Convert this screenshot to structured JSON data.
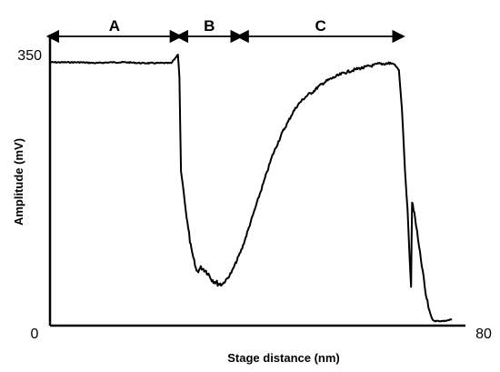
{
  "chart_data": {
    "type": "line",
    "title": "",
    "xlabel": "Stage distance (nm)",
    "ylabel": "Amplitude (mV)",
    "xlim": [
      0,
      80
    ],
    "ylim": [
      0,
      350
    ],
    "x_ticks": [
      "0",
      "80"
    ],
    "y_ticks": [
      "350"
    ],
    "grid": false,
    "legend": "none",
    "line_color": "#000000",
    "regions": [
      {
        "label": "A",
        "x_start": 0.0,
        "x_end": 25.5
      },
      {
        "label": "B",
        "x_start": 25.5,
        "x_end": 37.5
      },
      {
        "label": "C",
        "x_start": 37.5,
        "x_end": 69.5
      }
    ],
    "series": [
      {
        "x": [
          0.0,
          3.0,
          6.0,
          9.0,
          12.0,
          15.0,
          18.0,
          21.0,
          24.0,
          25.3,
          25.6,
          25.9,
          26.3,
          27.0,
          28.0,
          29.0,
          30.0,
          31.0,
          32.0,
          33.0,
          34.0,
          35.0,
          36.0,
          37.0,
          38.0,
          39.0,
          40.0,
          41.0,
          42.0,
          43.0,
          44.0,
          45.0,
          46.0,
          47.0,
          48.0,
          49.0,
          50.0,
          51.0,
          52.0,
          53.0,
          54.0,
          55.0,
          56.0,
          57.0,
          58.0,
          59.0,
          60.0,
          61.0,
          62.0,
          63.0,
          64.0,
          65.0,
          66.0,
          67.0,
          68.0,
          69.0,
          69.6,
          70.2,
          70.7,
          71.1,
          71.4,
          71.6,
          71.9,
          72.4,
          73.0,
          73.7,
          74.3,
          75.0,
          75.6,
          76.2,
          77.0,
          78.0,
          79.5
        ],
        "y": [
          340,
          340,
          340,
          339,
          340,
          340,
          339,
          339,
          339,
          350,
          320,
          200,
          180,
          140,
          95,
          70,
          75,
          70,
          60,
          55,
          53,
          60,
          70,
          85,
          100,
          120,
          140,
          160,
          180,
          200,
          220,
          235,
          250,
          262,
          275,
          285,
          292,
          298,
          302,
          308,
          313,
          317,
          320,
          323,
          326,
          328,
          330,
          332,
          333,
          335,
          336,
          338,
          338,
          339,
          338,
          330,
          280,
          200,
          150,
          90,
          50,
          160,
          150,
          130,
          100,
          70,
          40,
          20,
          8,
          6,
          6,
          6,
          8
        ]
      }
    ]
  }
}
